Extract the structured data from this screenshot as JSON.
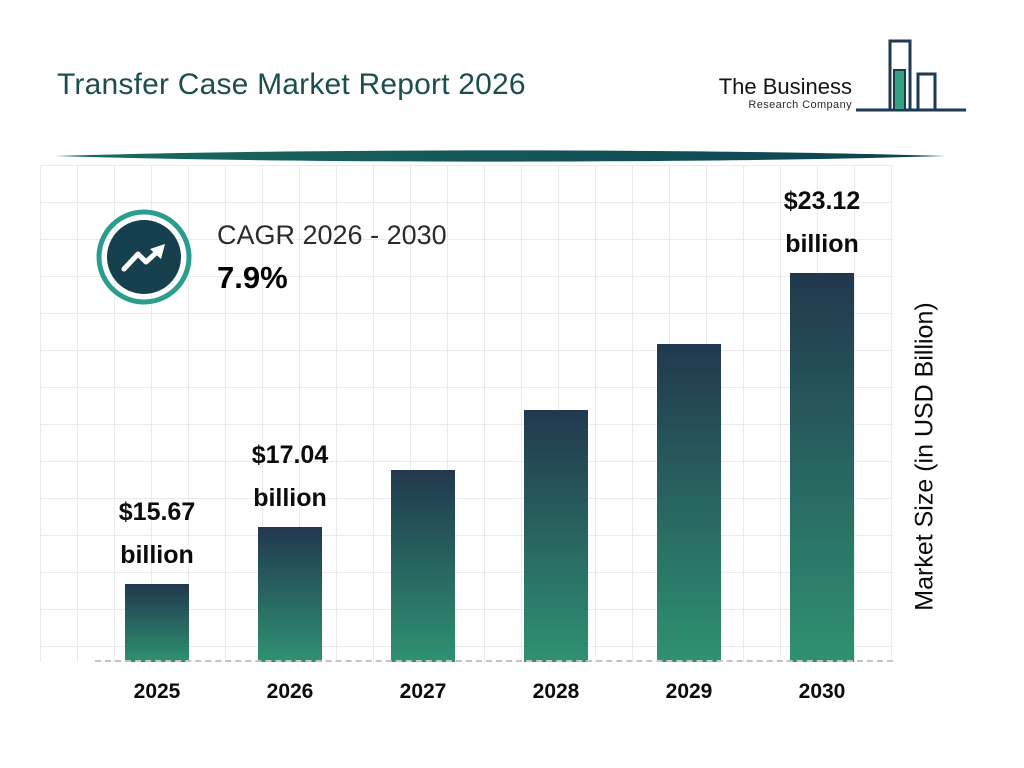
{
  "header": {
    "title": "Transfer Case Market Report 2026",
    "logo": {
      "name": "The Business",
      "tagline": "Research Company"
    }
  },
  "cagr_badge": {
    "label": "CAGR 2026 - 2030",
    "value": "7.9%",
    "icon": "trend-up-arrow-icon"
  },
  "chart_data": {
    "type": "bar",
    "categories": [
      "2025",
      "2026",
      "2027",
      "2028",
      "2029",
      "2030"
    ],
    "values": [
      15.67,
      17.04,
      18.39,
      19.84,
      21.41,
      23.12
    ],
    "bar_labels": [
      {
        "amount": "$15.67",
        "unit": "billion"
      },
      {
        "amount": "$17.04",
        "unit": "billion"
      },
      null,
      null,
      null,
      {
        "amount": "$23.12",
        "unit": "billion"
      }
    ],
    "xlabel": "",
    "ylabel": "Market Size (in USD Billion)",
    "ylim": [
      13.8,
      25.7
    ],
    "grid": true,
    "legend": false,
    "colors": {
      "bar_gradient_top": "#21384e",
      "bar_gradient_bottom": "#2f9172",
      "title_color": "#1d4e4e",
      "accent_teal": "#2a9d8f",
      "badge_fill": "#16404e",
      "divider_teal": "#17605b"
    }
  }
}
